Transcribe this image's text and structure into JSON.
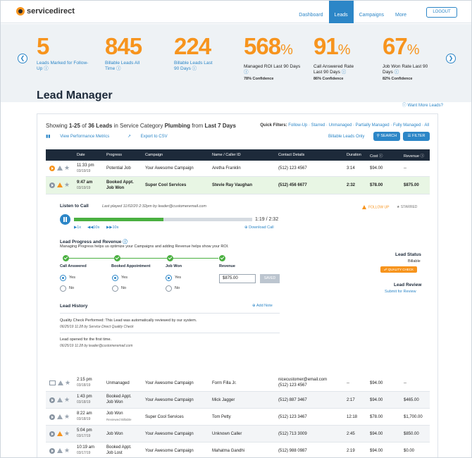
{
  "nav": {
    "logo": "servicedirect",
    "links": [
      "Dashboard",
      "Leads",
      "Campaigns",
      "More"
    ],
    "logout": "LOGOUT"
  },
  "stats": [
    {
      "num": "5",
      "pct": "",
      "label": "Leads Marked for Follow-Up",
      "info": "ⓘ",
      "conf": ""
    },
    {
      "num": "845",
      "pct": "",
      "label": "Billable Leads All Time",
      "info": "ⓘ",
      "conf": ""
    },
    {
      "num": "224",
      "pct": "",
      "label": "Billable Leads Last 90 Days",
      "info": "ⓘ",
      "conf": ""
    },
    {
      "num": "568",
      "pct": "%",
      "label": "Managed ROI Last 90 Days",
      "info": "ⓘ",
      "conf": "78% Confidence"
    },
    {
      "num": "91",
      "pct": "%",
      "label": "Call Answered Rate Last 90 Days",
      "info": "ⓘ",
      "conf": "86% Confidence"
    },
    {
      "num": "67",
      "pct": "%",
      "label": "Job Won Rate Last 90 Days",
      "info": "ⓘ",
      "conf": "82% Confidence"
    }
  ],
  "title": "Lead Manager",
  "want_more": "Want More Leads?",
  "showing": {
    "pre": "Showing ",
    "range": "1-25",
    "of": " of ",
    "count": "36 Leads",
    "mid": " in Service Category ",
    "category": "Plumbing",
    "from": " from ",
    "period": "Last 7 Days"
  },
  "quick_filters": {
    "label": "Quick Filters:",
    "items": "Follow-Up · Starred · Unmanaged · Partially Managed · Fully Managed · All"
  },
  "tools": {
    "perf": "View Performance Metrics",
    "export": "Export to CSV",
    "billable_only": "Billable Leads Only",
    "search": "SEARCH",
    "filter": "FILTER"
  },
  "columns": [
    "Date",
    "Progress",
    "Campaign",
    "Name / Caller ID",
    "Contact Details",
    "Duration",
    "Cost ⓘ",
    "Revenue ⓘ"
  ],
  "rows_top": [
    {
      "time": "11:33 pm",
      "date": "03/19/19",
      "progress": "Potential Job",
      "progress2": "",
      "sub": "",
      "campaign": "Your Awesome Campaign",
      "name": "Aretha Franklin",
      "contact": "(512) 123 4567",
      "contact2": "",
      "duration": "3:14",
      "cost": "$94.00",
      "revenue": "--"
    },
    {
      "time": "9:47 am",
      "date": "03/19/19",
      "progress": "Booked Appt.",
      "progress2": "Job Won",
      "sub": "",
      "campaign": "Super Cool Services",
      "name": "Stevie Ray Vaughan",
      "contact": "(512) 456 6677",
      "contact2": "",
      "duration": "2:32",
      "cost": "$78.00",
      "revenue": "$875.00"
    }
  ],
  "detail": {
    "listen": "Listen to Call",
    "last_played": "Last played 11/02/20 2:32pm by leader@customeremail.com",
    "progress_value": 0.5,
    "time": "1:19 / 2:32",
    "speed": "▶1x",
    "back": "◀◀10s",
    "fwd": "▶▶10s",
    "download": "Download Call",
    "follow_up": "FOLLOW UP",
    "starred": "STARRED",
    "lead_status_label": "Lead Status",
    "lead_status": "Billable",
    "quality": "QUALITY CHECK",
    "lead_review_label": "Lead Review",
    "submit_review": "Submit for Review",
    "lpr_title": "Lead Progress and Revenue",
    "lpr_desc": "Managing Progress helps us optimize your Campaigns and adding Revenue helps show your ROI.",
    "steps": [
      "Call Answered",
      "Booked Appointment",
      "Job Won",
      "Revenue"
    ],
    "yes": "Yes",
    "no": "No",
    "revenue_value": "$875.00",
    "saved": "SAVED",
    "history_title": "Lead History",
    "add_note": "Add Note",
    "h1": "Quality Check Performed: This Lead was automatically reviewed by our system.",
    "h1_meta": "06/25/19 11:28 by Service Direct Quality Check",
    "h2": "Lead opened for the first time.",
    "h2_meta": "06/25/19 11:28 by leader@customeremail.com"
  },
  "rows_bottom": [
    {
      "time": "2:15 pm",
      "date": "03/18/19",
      "progress": "Unmanaged",
      "progress2": "",
      "sub": "",
      "campaign": "Your Awesome Campaign",
      "name": "Form Filla Jr.",
      "contact": "nicecustomer@email.com",
      "contact2": "(512) 123 4567",
      "duration": "--",
      "cost": "$94.00",
      "revenue": "--"
    },
    {
      "time": "1:43 pm",
      "date": "03/18/19",
      "progress": "Booked Appt.",
      "progress2": "Job Won",
      "sub": "",
      "campaign": "Your Awesome Campaign",
      "name": "Mick Jagger",
      "contact": "(512) 887 3467",
      "contact2": "",
      "duration": "2:17",
      "cost": "$94.00",
      "revenue": "$465.00"
    },
    {
      "time": "8:22 am",
      "date": "03/18/19",
      "progress": "Job Won",
      "progress2": "",
      "sub": "Reviewed Billable",
      "campaign": "Super Cool Services",
      "name": "Tom Petty",
      "contact": "(512) 123 3467",
      "contact2": "",
      "duration": "12:18",
      "cost": "$78.00",
      "revenue": "$1,700.00"
    },
    {
      "time": "5:04 pm",
      "date": "03/17/19",
      "progress": "Job Won",
      "progress2": "",
      "sub": "",
      "campaign": "Your Awesome Campaign",
      "name": "Unknown Caller",
      "contact": "(512) 713 3009",
      "contact2": "",
      "duration": "2:45",
      "cost": "$94.00",
      "revenue": "$850.00"
    },
    {
      "time": "10:19 am",
      "date": "03/17/19",
      "progress": "Booked Appt.",
      "progress2": "Job Lost",
      "sub": "",
      "campaign": "Your Awesome Campaign",
      "name": "Mahatma Gandhi",
      "contact": "(512) 988 0987",
      "contact2": "",
      "duration": "2:19",
      "cost": "$94.00",
      "revenue": "$0.00"
    }
  ]
}
